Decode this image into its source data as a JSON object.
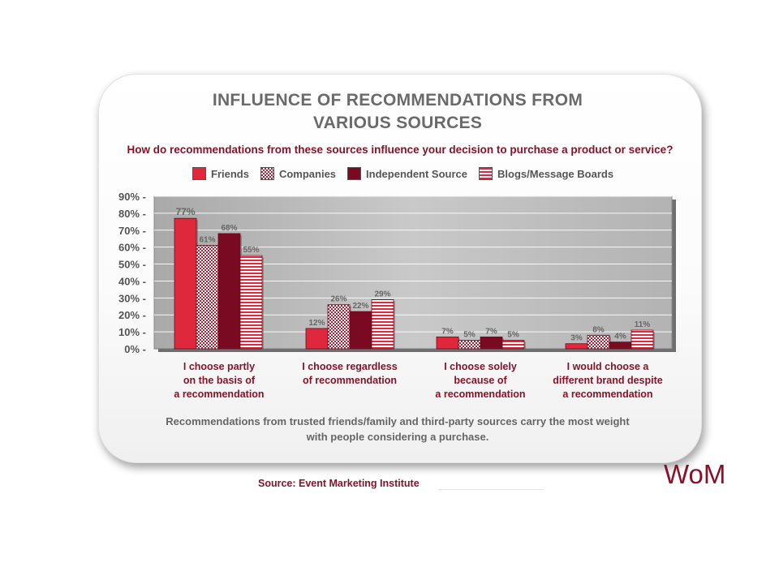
{
  "title_line1": "INFLUENCE OF RECOMMENDATIONS FROM",
  "title_line2": "VARIOUS SOURCES",
  "question": "How do recommendations from these sources influence your decision to purchase a product or service?",
  "footnote_line1": "Recommendations from trusted friends/family and third-party sources carry the most weight",
  "footnote_line2": "with people considering a purchase.",
  "source": "Source:  Event Marketing Institute",
  "watermark": "WoM",
  "colors": {
    "friends": "#e0283c",
    "companies": "#b01e33",
    "independent": "#7a0a22",
    "blogs": "#e0283c",
    "accent": "#8a1228",
    "plot_bg": "#bdbdbd"
  },
  "chart_data": {
    "type": "bar",
    "categories": [
      [
        "I choose partly",
        "on the basis of",
        "a recommendation"
      ],
      [
        "I choose regardless",
        "of recommendation"
      ],
      [
        "I choose solely",
        "because of",
        "a recommendation"
      ],
      [
        "I would choose a",
        "different brand despite",
        "a recommendation"
      ]
    ],
    "series": [
      {
        "name": "Friends",
        "values": [
          77,
          12,
          7,
          3
        ],
        "labels": [
          "77%",
          "12%",
          "7%",
          "3%"
        ],
        "pattern": "solid"
      },
      {
        "name": "Companies",
        "values": [
          61,
          26,
          5,
          8
        ],
        "labels": [
          "61%",
          "26%",
          "5%",
          "8%"
        ],
        "pattern": "checker"
      },
      {
        "name": "Independent Source",
        "values": [
          68,
          22,
          7,
          4
        ],
        "labels": [
          "68%",
          "22%",
          "7%",
          "4%"
        ],
        "pattern": "dark"
      },
      {
        "name": "Blogs/Message Boards",
        "values": [
          55,
          29,
          5,
          11
        ],
        "labels": [
          "55%",
          "29%",
          "5%",
          "11%"
        ],
        "pattern": "stripes"
      }
    ],
    "yticks": [
      "0%",
      "10%",
      "20%",
      "30%",
      "40%",
      "50%",
      "60%",
      "70%",
      "80%",
      "90%"
    ],
    "ylim": [
      0,
      90
    ],
    "legend_position": "top",
    "grid": true
  }
}
